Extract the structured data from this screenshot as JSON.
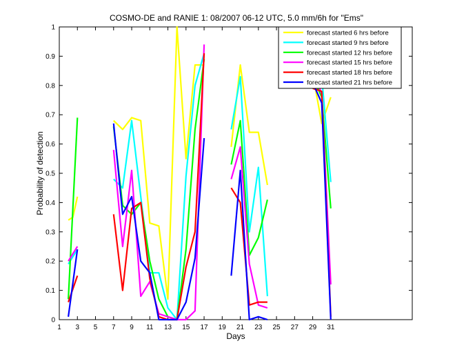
{
  "chart_data": {
    "type": "line",
    "title": "COSMO-DE and RANIE 1: 08/2007 06-12 UTC, 5.0 mm/6h for \"Ems\"",
    "xlabel": "Days",
    "ylabel": "Probability of detection",
    "xlim": [
      1,
      40
    ],
    "ylim": [
      0,
      1
    ],
    "xticks": [
      1,
      3,
      5,
      7,
      9,
      11,
      13,
      15,
      17,
      19,
      21,
      23,
      25,
      27,
      29,
      31
    ],
    "yticks": [
      0,
      0.1,
      0.2,
      0.3,
      0.4,
      0.5,
      0.6,
      0.7,
      0.8,
      0.9,
      1
    ],
    "ytick_labels": [
      "0",
      "0.1",
      "0.2",
      "0.3",
      "0.4",
      "0.5",
      "0.6",
      "0.7",
      "0.8",
      "0.9",
      "1"
    ],
    "legend_position": "top-right",
    "grid": false,
    "series": [
      {
        "name": "forecast started 6 hrs before",
        "color": "#ffff00",
        "segments": [
          [
            [
              2,
              0.34
            ],
            [
              2.5,
              0.35
            ],
            [
              3,
              0.42
            ]
          ],
          [
            [
              7,
              0.68
            ],
            [
              8,
              0.65
            ],
            [
              9,
              0.69
            ],
            [
              10,
              0.68
            ],
            [
              11,
              0.33
            ],
            [
              12,
              0.32
            ],
            [
              13,
              0.07
            ],
            [
              14,
              1.0
            ],
            [
              15,
              0.55
            ],
            [
              16,
              0.87
            ],
            [
              17,
              0.87
            ]
          ],
          [
            [
              20,
              0.59
            ],
            [
              21,
              0.87
            ],
            [
              22,
              0.64
            ],
            [
              23,
              0.64
            ],
            [
              24,
              0.46
            ]
          ],
          [
            [
              29,
              0.84
            ],
            [
              30,
              0.67
            ],
            [
              31,
              0.76
            ]
          ]
        ]
      },
      {
        "name": "forecast started 9 hrs before",
        "color": "#00ffff",
        "segments": [
          [
            [
              2,
              0.19
            ],
            [
              3,
              0.24
            ]
          ],
          [
            [
              7,
              0.48
            ],
            [
              8,
              0.45
            ],
            [
              9,
              0.68
            ],
            [
              10,
              0.42
            ],
            [
              11,
              0.16
            ],
            [
              12,
              0.16
            ],
            [
              13,
              0.04
            ],
            [
              14,
              0.0
            ],
            [
              15,
              0.49
            ],
            [
              16,
              0.8
            ],
            [
              17,
              0.91
            ]
          ],
          [
            [
              20,
              0.65
            ],
            [
              21,
              0.83
            ],
            [
              22,
              0.3
            ],
            [
              23,
              0.52
            ],
            [
              24,
              0.08
            ]
          ],
          [
            [
              29,
              0.89
            ],
            [
              30,
              0.83
            ],
            [
              31,
              0.47
            ]
          ]
        ]
      },
      {
        "name": "forecast started 12 hrs before",
        "color": "#00ff00",
        "segments": [
          [
            [
              2,
              0.07
            ],
            [
              3,
              0.69
            ]
          ],
          [
            [
              7,
              0.66
            ],
            [
              8,
              0.39
            ],
            [
              9,
              0.36
            ],
            [
              10,
              0.4
            ],
            [
              11,
              0.2
            ],
            [
              12,
              0.07
            ],
            [
              13,
              0.01
            ],
            [
              14,
              0.0
            ],
            [
              15,
              0.24
            ],
            [
              16,
              0.65
            ],
            [
              17,
              0.89
            ]
          ],
          [
            [
              20,
              0.53
            ],
            [
              21,
              0.68
            ],
            [
              22,
              0.22
            ],
            [
              23,
              0.28
            ],
            [
              24,
              0.41
            ]
          ],
          [
            [
              29,
              0.83
            ],
            [
              30,
              0.76
            ],
            [
              31,
              0.38
            ]
          ]
        ]
      },
      {
        "name": "forecast started 15 hrs before",
        "color": "#ff00ff",
        "segments": [
          [
            [
              2,
              0.2
            ],
            [
              3,
              0.25
            ]
          ],
          [
            [
              7,
              0.58
            ],
            [
              8,
              0.25
            ],
            [
              9,
              0.51
            ],
            [
              10,
              0.08
            ],
            [
              11,
              0.13
            ],
            [
              12,
              0.02
            ],
            [
              13,
              0.01
            ],
            [
              14,
              0.0
            ],
            [
              15,
              0.0
            ],
            [
              16,
              0.03
            ],
            [
              17,
              0.94
            ]
          ],
          [
            [
              20,
              0.48
            ],
            [
              21,
              0.59
            ],
            [
              22,
              0.19
            ],
            [
              23,
              0.05
            ],
            [
              24,
              0.04
            ]
          ],
          [
            [
              29,
              0.86
            ],
            [
              30,
              0.77
            ],
            [
              31,
              0.12
            ]
          ]
        ]
      },
      {
        "name": "forecast started 18 hrs before",
        "color": "#ff0000",
        "segments": [
          [
            [
              2,
              0.06
            ],
            [
              3,
              0.15
            ]
          ],
          [
            [
              7,
              0.36
            ],
            [
              8,
              0.1
            ],
            [
              9,
              0.38
            ],
            [
              10,
              0.4
            ],
            [
              11,
              0.14
            ],
            [
              12,
              0.01
            ],
            [
              13,
              0.0
            ],
            [
              14,
              0.0
            ],
            [
              15,
              0.18
            ],
            [
              16,
              0.3
            ],
            [
              17,
              0.91
            ]
          ],
          [
            [
              20,
              0.45
            ],
            [
              21,
              0.4
            ],
            [
              22,
              0.05
            ],
            [
              23,
              0.06
            ],
            [
              24,
              0.06
            ]
          ],
          [
            [
              29,
              0.79
            ],
            [
              30,
              0.78
            ],
            [
              31,
              0.01
            ]
          ]
        ]
      },
      {
        "name": "forecast started 21 hrs before",
        "color": "#0000ff",
        "segments": [
          [
            [
              2,
              0.01
            ],
            [
              3,
              0.24
            ]
          ],
          [
            [
              7,
              0.67
            ],
            [
              8,
              0.36
            ],
            [
              9,
              0.42
            ],
            [
              10,
              0.2
            ],
            [
              11,
              0.16
            ],
            [
              12,
              0.0
            ],
            [
              13,
              0.0
            ],
            [
              14,
              0.0
            ],
            [
              15,
              0.06
            ],
            [
              16,
              0.21
            ],
            [
              17,
              0.62
            ]
          ],
          [
            [
              20,
              0.15
            ],
            [
              21,
              0.51
            ],
            [
              22,
              0.0
            ],
            [
              23,
              0.01
            ],
            [
              24,
              0.0
            ]
          ],
          [
            [
              29,
              0.81
            ],
            [
              30,
              0.74
            ],
            [
              31,
              0.0
            ]
          ]
        ]
      }
    ]
  }
}
